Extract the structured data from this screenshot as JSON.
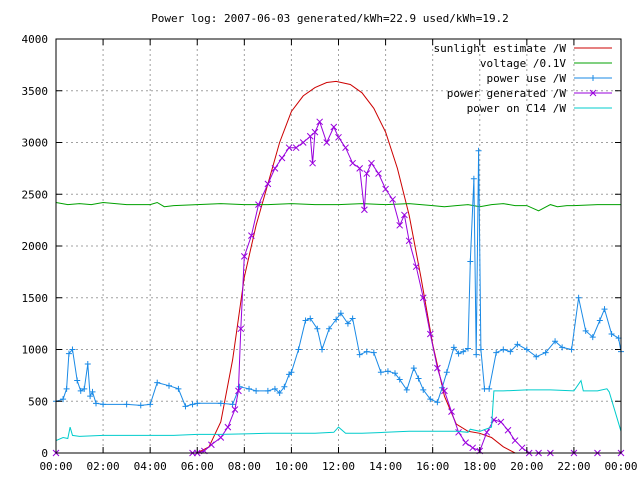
{
  "chart_data": {
    "type": "line",
    "title": "Power log: 2007-06-03 generated/kWh=22.9 used/kWh=19.2",
    "xlabel": "",
    "ylabel": "",
    "x_unit": "hours",
    "xlim": [
      0,
      24
    ],
    "ylim": [
      0,
      4000
    ],
    "grid": true,
    "legend_position": "top-right",
    "x_ticks": [
      "00:00",
      "02:00",
      "04:00",
      "06:00",
      "08:00",
      "10:00",
      "12:00",
      "14:00",
      "16:00",
      "18:00",
      "20:00",
      "22:00",
      "00:00"
    ],
    "y_ticks": [
      "0",
      "500",
      "1000",
      "1500",
      "2000",
      "2500",
      "3000",
      "3500",
      "4000"
    ],
    "series": [
      {
        "name": "sunlight estimate /W",
        "color": "#cc0000",
        "marker": "none",
        "x": [
          0,
          6.0,
          6.5,
          7.0,
          7.5,
          8.0,
          8.5,
          9.0,
          9.5,
          10.0,
          10.5,
          11.0,
          11.5,
          11.9,
          12.5,
          13.0,
          13.5,
          14.0,
          14.5,
          15.0,
          15.5,
          16.0,
          16.5,
          17.0,
          17.5,
          18.0,
          18.5,
          19.0,
          19.5,
          20.0,
          24
        ],
        "y": [
          0,
          0,
          60,
          300,
          900,
          1700,
          2200,
          2600,
          3000,
          3300,
          3450,
          3530,
          3580,
          3590,
          3560,
          3480,
          3330,
          3100,
          2750,
          2300,
          1700,
          1050,
          550,
          280,
          210,
          190,
          150,
          60,
          0,
          0,
          0
        ]
      },
      {
        "name": "voltage /0.1V",
        "color": "#00a000",
        "marker": "none",
        "x": [
          0,
          0.5,
          1,
          1.5,
          2,
          3,
          4,
          4.3,
          4.6,
          5,
          6,
          7,
          8,
          9,
          10,
          11,
          12,
          13,
          14,
          15,
          16,
          16.5,
          17,
          17.5,
          18,
          18.5,
          19,
          19.5,
          20,
          20.5,
          21,
          21.3,
          21.7,
          22,
          23,
          24
        ],
        "y": [
          2420,
          2400,
          2410,
          2400,
          2420,
          2400,
          2400,
          2420,
          2380,
          2390,
          2400,
          2410,
          2400,
          2400,
          2410,
          2400,
          2400,
          2410,
          2400,
          2410,
          2390,
          2380,
          2390,
          2400,
          2380,
          2400,
          2410,
          2390,
          2390,
          2340,
          2400,
          2380,
          2390,
          2390,
          2400,
          2400
        ]
      },
      {
        "name": "power use /W",
        "color": "#1a8ae6",
        "marker": "+",
        "x": [
          0,
          0.3,
          0.45,
          0.55,
          0.7,
          0.9,
          1.05,
          1.2,
          1.35,
          1.45,
          1.55,
          1.7,
          2.0,
          3.0,
          3.6,
          4.0,
          4.3,
          4.8,
          5.2,
          5.5,
          5.8,
          6.0,
          7.0,
          7.5,
          7.8,
          8.2,
          8.5,
          9.0,
          9.3,
          9.5,
          9.7,
          9.9,
          10.0,
          10.3,
          10.6,
          10.8,
          11.1,
          11.3,
          11.6,
          11.9,
          12.1,
          12.4,
          12.6,
          12.9,
          13.2,
          13.5,
          13.8,
          14.1,
          14.4,
          14.6,
          14.9,
          15.2,
          15.4,
          15.6,
          15.9,
          16.2,
          16.4,
          16.6,
          16.9,
          17.1,
          17.3,
          17.5,
          17.6,
          17.75,
          17.85,
          17.95,
          18.05,
          18.2,
          18.4,
          18.7,
          19.0,
          19.3,
          19.6,
          20.0,
          20.4,
          20.8,
          21.2,
          21.5,
          21.9,
          22.2,
          22.5,
          22.8,
          23.1,
          23.3,
          23.6,
          23.9,
          24.0
        ],
        "y": [
          500,
          520,
          620,
          960,
          1000,
          700,
          600,
          620,
          860,
          550,
          590,
          480,
          470,
          470,
          460,
          470,
          680,
          650,
          620,
          450,
          470,
          480,
          480,
          470,
          640,
          620,
          600,
          600,
          620,
          580,
          640,
          760,
          780,
          1000,
          1280,
          1300,
          1200,
          1000,
          1200,
          1290,
          1350,
          1250,
          1300,
          950,
          980,
          970,
          780,
          790,
          770,
          710,
          610,
          820,
          720,
          610,
          520,
          490,
          630,
          780,
          1020,
          960,
          980,
          1010,
          1850,
          2650,
          950,
          2920,
          1000,
          620,
          620,
          970,
          1000,
          980,
          1050,
          1000,
          930,
          970,
          1080,
          1020,
          1000,
          1500,
          1180,
          1120,
          1280,
          1390,
          1150,
          1110,
          980
        ]
      },
      {
        "name": "power generated /W",
        "color": "#9900dd",
        "marker": "x",
        "x": [
          0,
          5.8,
          6.0,
          6.3,
          6.6,
          7.0,
          7.3,
          7.6,
          7.75,
          7.85,
          8.0,
          8.3,
          8.6,
          9.0,
          9.3,
          9.6,
          9.9,
          10.2,
          10.5,
          10.8,
          10.9,
          11.0,
          11.2,
          11.5,
          11.8,
          12.0,
          12.3,
          12.6,
          12.9,
          13.1,
          13.2,
          13.4,
          13.7,
          14.0,
          14.3,
          14.6,
          14.8,
          15.0,
          15.3,
          15.6,
          15.9,
          16.2,
          16.5,
          16.8,
          17.1,
          17.4,
          17.7,
          18.0,
          18.3,
          18.6,
          18.9,
          19.2,
          19.5,
          19.8,
          20.1,
          20.5,
          21.0,
          22.0,
          23.0,
          24.0
        ],
        "y": [
          0,
          0,
          0,
          20,
          80,
          150,
          250,
          420,
          600,
          1200,
          1900,
          2100,
          2400,
          2600,
          2750,
          2850,
          2950,
          2950,
          3000,
          3060,
          2800,
          3100,
          3200,
          3000,
          3150,
          3050,
          2950,
          2800,
          2750,
          2350,
          2700,
          2800,
          2700,
          2550,
          2450,
          2200,
          2300,
          2050,
          1800,
          1500,
          1150,
          820,
          600,
          400,
          200,
          100,
          50,
          20,
          200,
          320,
          300,
          220,
          120,
          50,
          0,
          0,
          0,
          0,
          0,
          0
        ]
      },
      {
        "name": "power on C14 /W",
        "color": "#00cccc",
        "marker": "none",
        "x": [
          0,
          0.3,
          0.5,
          0.6,
          0.7,
          1,
          2,
          3,
          4,
          5,
          6,
          7,
          8,
          9,
          10,
          11,
          11.8,
          12.0,
          12.3,
          12.6,
          13,
          14,
          15,
          16,
          17,
          17.5,
          17.6,
          18,
          18.5,
          18.6,
          19,
          20,
          21,
          22,
          22.3,
          22.4,
          23,
          23.4,
          23.5,
          24
        ],
        "y": [
          120,
          150,
          140,
          250,
          170,
          160,
          170,
          170,
          170,
          170,
          180,
          180,
          185,
          190,
          190,
          190,
          200,
          250,
          190,
          190,
          190,
          200,
          210,
          210,
          210,
          200,
          230,
          210,
          250,
          600,
          600,
          610,
          610,
          600,
          700,
          600,
          600,
          620,
          590,
          210
        ]
      }
    ]
  }
}
